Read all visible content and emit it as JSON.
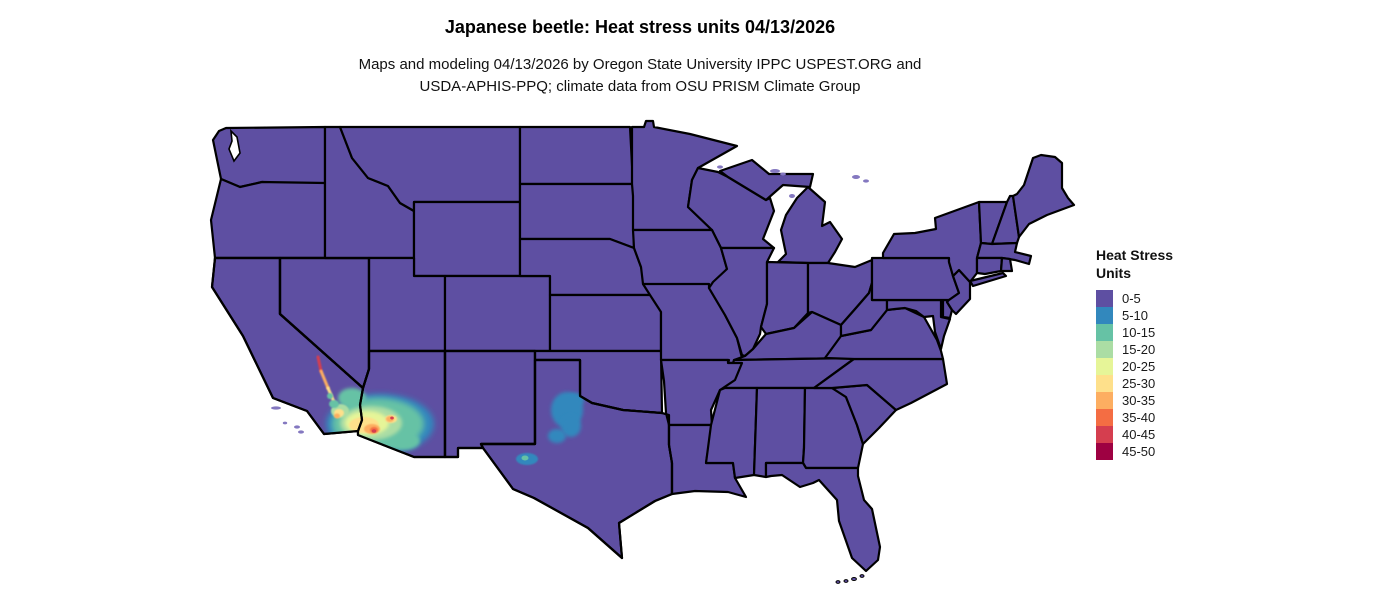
{
  "title": "Japanese beetle: Heat stress units 04/13/2026",
  "subtitle_lines": [
    "Maps and modeling 04/13/2026 by Oregon State University IPPC USPEST.ORG and",
    "USDA-APHIS-PPQ; climate data from OSU PRISM Climate Group"
  ],
  "legend": {
    "title_lines": [
      "Heat Stress",
      "Units"
    ],
    "entries": [
      {
        "label": "0-5",
        "color": "#5e4fa2"
      },
      {
        "label": "5-10",
        "color": "#3288bd"
      },
      {
        "label": "10-15",
        "color": "#66c2a5"
      },
      {
        "label": "15-20",
        "color": "#abdda4"
      },
      {
        "label": "20-25",
        "color": "#e6f598"
      },
      {
        "label": "25-30",
        "color": "#fee08b"
      },
      {
        "label": "30-35",
        "color": "#fdae61"
      },
      {
        "label": "35-40",
        "color": "#f46d43"
      },
      {
        "label": "40-45",
        "color": "#d53e4f"
      },
      {
        "label": "45-50",
        "color": "#9e0142"
      }
    ]
  },
  "map": {
    "base_value_range": "0-5",
    "base_color": "#5e4fa2",
    "border_color": "#000000",
    "background_color": "#ffffff",
    "island_color": "#8478c0",
    "hotspots": [
      {
        "region": "Southwest Arizona / Southeast California deserts",
        "value_range": "5-45"
      },
      {
        "region": "Death Valley and lower Colorado River valley, California",
        "value_range": "20-45"
      },
      {
        "region": "West-central Texas",
        "value_range": "5-10"
      },
      {
        "region": "Big Bend area, Texas",
        "value_range": "5-15"
      }
    ]
  }
}
